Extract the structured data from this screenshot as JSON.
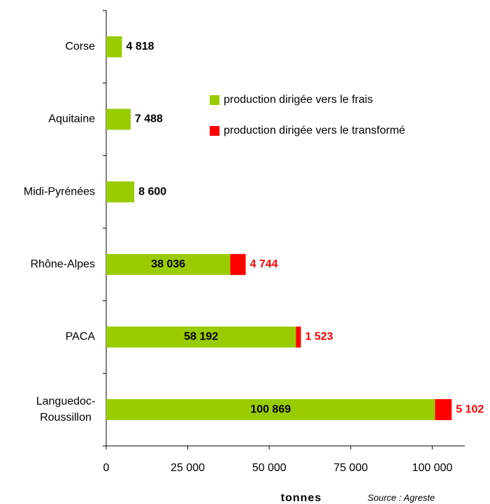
{
  "chart_data": {
    "type": "stacked-bar-horizontal",
    "categories": [
      "Corse",
      "Aquitaine",
      "Midi-Pyrénées",
      "Rhône-Alpes",
      "PACA",
      "Languedoc-Roussillon"
    ],
    "series": [
      {
        "name": "production dirigée vers le frais",
        "color": "#99cc00",
        "values": [
          4818,
          7488,
          8600,
          38036,
          58192,
          100869
        ],
        "value_labels": [
          "4 818",
          "7 488",
          "8 600",
          "38 036",
          "58 192",
          "100 869"
        ]
      },
      {
        "name": "production dirigée vers le transformé",
        "color": "#ff0000",
        "values": [
          null,
          null,
          null,
          4744,
          1523,
          5102
        ],
        "value_labels": [
          null,
          null,
          null,
          "4 744",
          "1 523",
          "5 102"
        ]
      }
    ],
    "xlim": [
      0,
      110000
    ],
    "xticks": [
      0,
      {
        "value": 25000,
        "label": "25 000"
      },
      {
        "value": 50000,
        "label": "50 000"
      },
      {
        "value": 75000,
        "label": "75 000"
      },
      {
        "value": 100000,
        "label": "100 000"
      }
    ],
    "xlabel": "tonnes",
    "source": "Source : Agreste"
  }
}
